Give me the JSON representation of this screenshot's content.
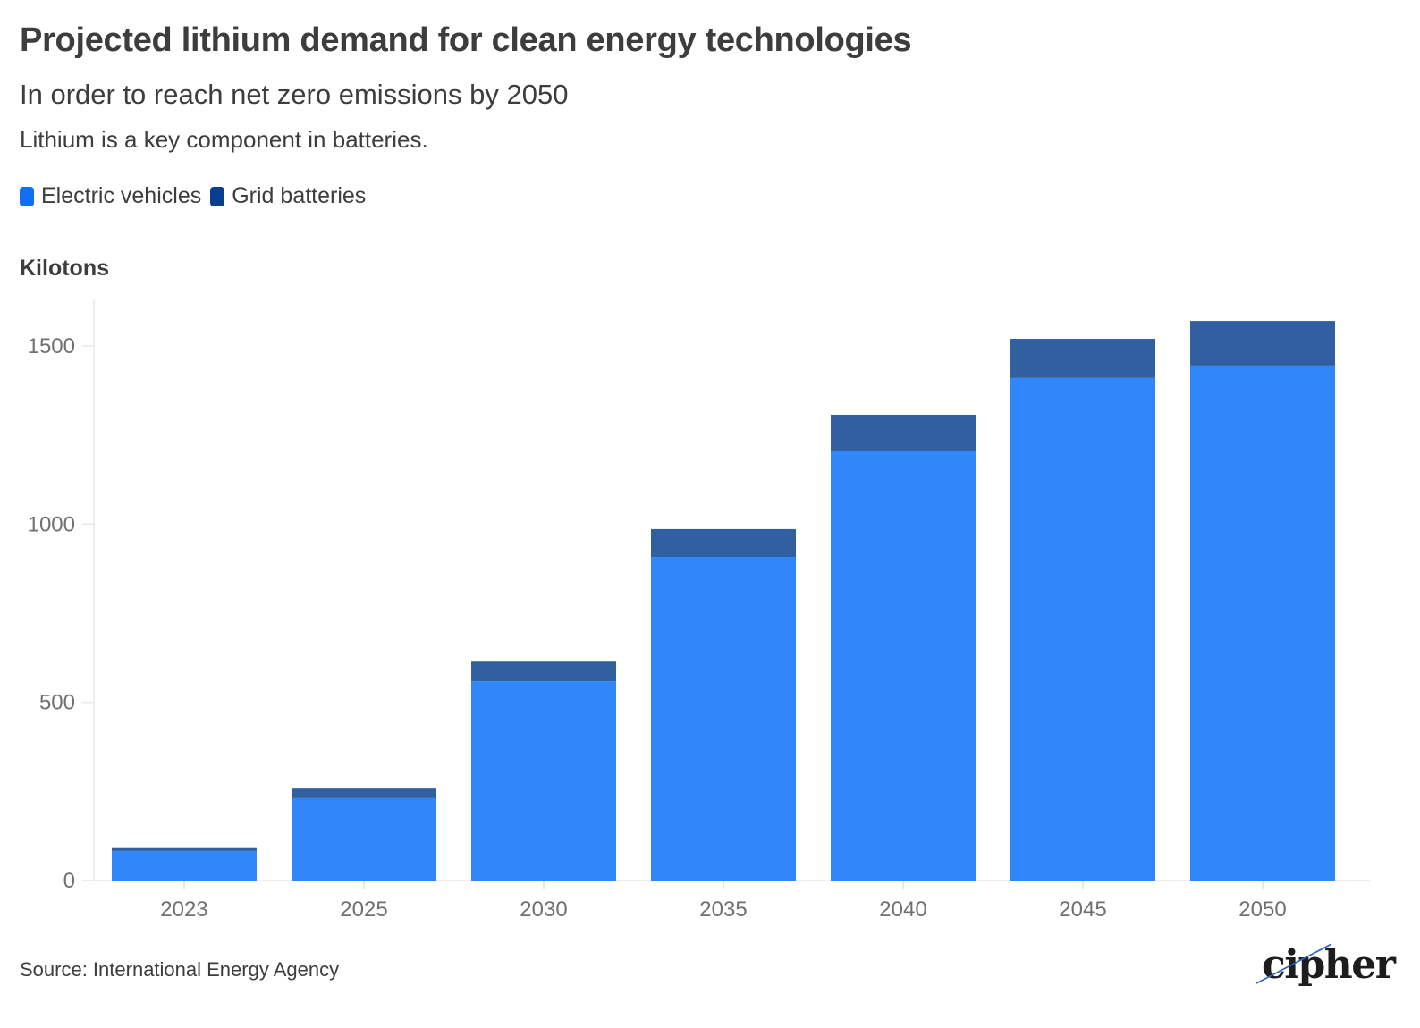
{
  "header": {
    "title": "Projected lithium demand for clean energy technologies",
    "subtitle": "In order to reach net zero emissions by 2050",
    "description": "Lithium is a key component in batteries."
  },
  "legend": [
    {
      "label": "Electric vehicles",
      "color": "#3087f9",
      "swatch_color": "#0f6ff5"
    },
    {
      "label": "Grid batteries",
      "color": "#3060a0",
      "swatch_color": "#0a3f8f"
    }
  ],
  "unit_label": "Kilotons",
  "footer": {
    "source": "Source: International Energy Agency",
    "logo_text": "cipher",
    "logo_accent": "#2a63c4"
  },
  "chart_data": {
    "type": "bar",
    "stacked": true,
    "title": "Projected lithium demand for clean energy technologies",
    "subtitle": "In order to reach net zero emissions by 2050",
    "xlabel": "",
    "ylabel": "Kilotons",
    "categories": [
      "2023",
      "2025",
      "2030",
      "2035",
      "2040",
      "2045",
      "2050"
    ],
    "series": [
      {
        "name": "Electric vehicles",
        "color": "#3087f9",
        "values": [
          83,
          231,
          559,
          908,
          1204,
          1410,
          1445
        ]
      },
      {
        "name": "Grid batteries",
        "color": "#3060a0",
        "values": [
          8,
          27,
          55,
          78,
          103,
          110,
          125
        ]
      }
    ],
    "ylim": [
      0,
      1630
    ],
    "yticks": [
      0,
      500,
      1000,
      1500
    ],
    "grid": false,
    "legend_position": "top-left"
  }
}
